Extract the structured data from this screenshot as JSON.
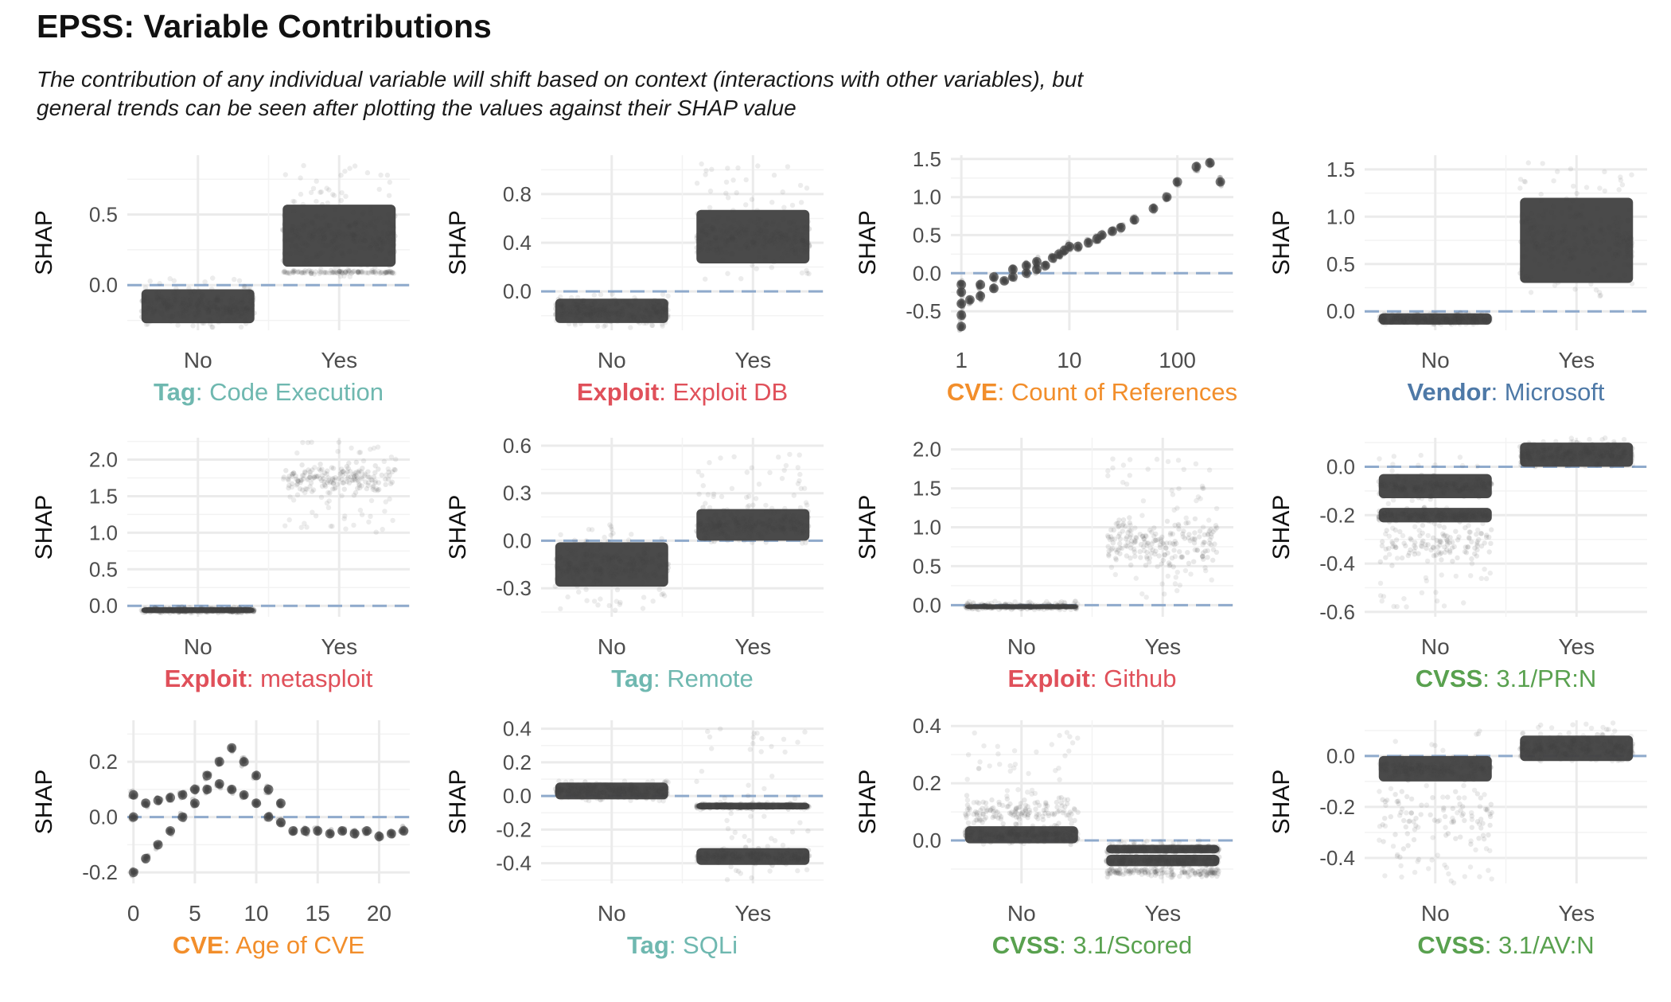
{
  "title": "EPSS: Variable Contributions",
  "subtitle": "The contribution of any individual variable will shift based on context (interactions with other variables), but general trends can be seen after plotting the values against their SHAP value",
  "colors": {
    "Tag": "#6fb8b0",
    "Exploit": "#e0505a",
    "CVE": "#f28e2b",
    "Vendor": "#4e79a7",
    "CVSS": "#59a14f",
    "points": "#444444",
    "zeroline": "#8faacc",
    "grid": "#ebebeb",
    "axis_text": "#4d4d4d"
  },
  "chart_data": [
    {
      "type": "scatter",
      "category": "Tag",
      "variable": "Code Execution",
      "ylabel": "SHAP",
      "xticks": [
        "No",
        "Yes"
      ],
      "yticks": [
        0.0,
        0.5
      ],
      "ytick_labels": [
        "0.0",
        "0.5"
      ],
      "ylim": [
        -0.32,
        0.92
      ],
      "groups": [
        {
          "x": "No",
          "bands": [
            {
              "center": -0.15,
              "half": 0.12,
              "density": 1.0
            }
          ],
          "scatter": {
            "min": -0.3,
            "max": 0.06
          }
        },
        {
          "x": "Yes",
          "bands": [
            {
              "center": 0.35,
              "half": 0.22,
              "density": 1.0
            },
            {
              "center": 0.09,
              "half": 0.015,
              "density": 0.5
            }
          ],
          "scatter": {
            "min": 0.05,
            "max": 0.85
          }
        }
      ]
    },
    {
      "type": "scatter",
      "category": "Exploit",
      "variable": "Exploit DB",
      "ylabel": "SHAP",
      "xticks": [
        "No",
        "Yes"
      ],
      "yticks": [
        0.0,
        0.4,
        0.8
      ],
      "ytick_labels": [
        "0.0",
        "0.4",
        "0.8"
      ],
      "ylim": [
        -0.32,
        1.12
      ],
      "groups": [
        {
          "x": "No",
          "bands": [
            {
              "center": -0.16,
              "half": 0.1,
              "density": 1.0
            }
          ],
          "scatter": {
            "min": -0.3,
            "max": -0.02
          }
        },
        {
          "x": "Yes",
          "bands": [
            {
              "center": 0.45,
              "half": 0.22,
              "density": 1.0
            }
          ],
          "scatter": {
            "min": 0.1,
            "max": 1.05
          }
        }
      ]
    },
    {
      "type": "scatter",
      "category": "CVE",
      "variable": "Count of References",
      "ylabel": "SHAP",
      "xscale": "log",
      "xticks": [
        1,
        10,
        100
      ],
      "xtick_labels": [
        "1",
        "10",
        "100"
      ],
      "xlim": [
        0.8,
        330
      ],
      "yticks": [
        -0.5,
        0.0,
        0.5,
        1.0,
        1.5
      ],
      "ytick_labels": [
        "-0.5",
        "0.0",
        "0.5",
        "1.0",
        "1.5"
      ],
      "ylim": [
        -0.75,
        1.55
      ],
      "points": [
        [
          1,
          -0.7
        ],
        [
          1,
          -0.55
        ],
        [
          1,
          -0.4
        ],
        [
          1,
          -0.25
        ],
        [
          1,
          -0.15
        ],
        [
          1.2,
          -0.35
        ],
        [
          1.5,
          -0.3
        ],
        [
          1.5,
          -0.15
        ],
        [
          2,
          -0.2
        ],
        [
          2,
          -0.05
        ],
        [
          2.5,
          -0.1
        ],
        [
          3,
          -0.05
        ],
        [
          3,
          0.05
        ],
        [
          4,
          0.0
        ],
        [
          4,
          0.1
        ],
        [
          5,
          0.05
        ],
        [
          5,
          0.15
        ],
        [
          6,
          0.1
        ],
        [
          7,
          0.2
        ],
        [
          8,
          0.25
        ],
        [
          9,
          0.3
        ],
        [
          10,
          0.35
        ],
        [
          12,
          0.35
        ],
        [
          15,
          0.4
        ],
        [
          18,
          0.45
        ],
        [
          20,
          0.5
        ],
        [
          25,
          0.55
        ],
        [
          30,
          0.6
        ],
        [
          40,
          0.7
        ],
        [
          60,
          0.85
        ],
        [
          80,
          1.0
        ],
        [
          100,
          1.2
        ],
        [
          150,
          1.4
        ],
        [
          200,
          1.45
        ],
        [
          250,
          1.2
        ]
      ]
    },
    {
      "type": "scatter",
      "category": "Vendor",
      "variable": "Microsoft",
      "ylabel": "SHAP",
      "xticks": [
        "No",
        "Yes"
      ],
      "yticks": [
        0.0,
        0.5,
        1.0,
        1.5
      ],
      "ytick_labels": [
        "0.0",
        "0.5",
        "1.0",
        "1.5"
      ],
      "ylim": [
        -0.2,
        1.65
      ],
      "groups": [
        {
          "x": "No",
          "bands": [
            {
              "center": -0.08,
              "half": 0.06,
              "density": 1.0
            }
          ],
          "scatter": {
            "min": -0.14,
            "max": -0.02
          }
        },
        {
          "x": "Yes",
          "bands": [
            {
              "center": 0.75,
              "half": 0.45,
              "density": 0.9
            }
          ],
          "scatter": {
            "min": 0.15,
            "max": 1.6
          }
        }
      ]
    },
    {
      "type": "scatter",
      "category": "Exploit",
      "variable": "metasploit",
      "ylabel": "SHAP",
      "xticks": [
        "No",
        "Yes"
      ],
      "yticks": [
        0.0,
        0.5,
        1.0,
        1.5,
        2.0
      ],
      "ytick_labels": [
        "0.0",
        "0.5",
        "1.0",
        "1.5",
        "2.0"
      ],
      "ylim": [
        -0.15,
        2.3
      ],
      "groups": [
        {
          "x": "No",
          "bands": [
            {
              "center": -0.06,
              "half": 0.04,
              "density": 1.0
            }
          ],
          "scatter": {
            "min": -0.1,
            "max": -0.02
          }
        },
        {
          "x": "Yes",
          "bands": [
            {
              "center": 1.75,
              "half": 0.25,
              "density": 0.7
            }
          ],
          "scatter": {
            "min": 1.0,
            "max": 2.25
          }
        }
      ]
    },
    {
      "type": "scatter",
      "category": "Tag",
      "variable": "Remote",
      "ylabel": "SHAP",
      "xticks": [
        "No",
        "Yes"
      ],
      "yticks": [
        -0.3,
        0.0,
        0.3,
        0.6
      ],
      "ytick_labels": [
        "-0.3",
        "0.0",
        "0.3",
        "0.6"
      ],
      "ylim": [
        -0.48,
        0.65
      ],
      "groups": [
        {
          "x": "No",
          "bands": [
            {
              "center": -0.15,
              "half": 0.14,
              "density": 1.0
            }
          ],
          "scatter": {
            "min": -0.45,
            "max": 0.12
          }
        },
        {
          "x": "Yes",
          "bands": [
            {
              "center": 0.1,
              "half": 0.1,
              "density": 1.0
            }
          ],
          "scatter": {
            "min": -0.03,
            "max": 0.55
          }
        }
      ]
    },
    {
      "type": "scatter",
      "category": "Exploit",
      "variable": "Github",
      "ylabel": "SHAP",
      "xticks": [
        "No",
        "Yes"
      ],
      "yticks": [
        0.0,
        0.5,
        1.0,
        1.5,
        2.0
      ],
      "ytick_labels": [
        "0.0",
        "0.5",
        "1.0",
        "1.5",
        "2.0"
      ],
      "ylim": [
        -0.15,
        2.15
      ],
      "groups": [
        {
          "x": "No",
          "bands": [
            {
              "center": -0.02,
              "half": 0.03,
              "density": 1.0
            }
          ],
          "scatter": {
            "min": -0.06,
            "max": 0.05
          }
        },
        {
          "x": "Yes",
          "bands": [
            {
              "center": 0.8,
              "half": 0.4,
              "density": 0.8
            }
          ],
          "scatter": {
            "min": 0.1,
            "max": 1.9
          }
        }
      ]
    },
    {
      "type": "scatter",
      "category": "CVSS",
      "variable": "3.1/PR:N",
      "ylabel": "SHAP",
      "xticks": [
        "No",
        "Yes"
      ],
      "yticks": [
        -0.6,
        -0.4,
        -0.2,
        0.0
      ],
      "ytick_labels": [
        "-0.6",
        "-0.4",
        "-0.2",
        "0.0"
      ],
      "ylim": [
        -0.62,
        0.12
      ],
      "groups": [
        {
          "x": "No",
          "bands": [
            {
              "center": -0.08,
              "half": 0.05,
              "density": 1.0
            },
            {
              "center": -0.2,
              "half": 0.03,
              "density": 1.0
            },
            {
              "center": -0.32,
              "half": 0.1,
              "density": 0.5
            }
          ],
          "scatter": {
            "min": -0.58,
            "max": 0.05
          }
        },
        {
          "x": "Yes",
          "bands": [
            {
              "center": 0.05,
              "half": 0.05,
              "density": 1.0
            }
          ],
          "scatter": {
            "min": 0.0,
            "max": 0.12
          }
        }
      ]
    },
    {
      "type": "scatter",
      "category": "CVE",
      "variable": "Age of CVE",
      "ylabel": "SHAP",
      "xticks": [
        0,
        5,
        10,
        15,
        20
      ],
      "xtick_labels": [
        "0",
        "5",
        "10",
        "15",
        "20"
      ],
      "xlim": [
        -0.5,
        22.5
      ],
      "yticks": [
        -0.2,
        0.0,
        0.2
      ],
      "ytick_labels": [
        "-0.2",
        "0.0",
        "0.2"
      ],
      "ylim": [
        -0.24,
        0.35
      ],
      "points": [
        [
          0,
          -0.2
        ],
        [
          0,
          0.0
        ],
        [
          0,
          0.08
        ],
        [
          1,
          -0.15
        ],
        [
          1,
          0.05
        ],
        [
          2,
          -0.1
        ],
        [
          2,
          0.06
        ],
        [
          3,
          -0.05
        ],
        [
          3,
          0.07
        ],
        [
          4,
          0.0
        ],
        [
          4,
          0.08
        ],
        [
          5,
          0.05
        ],
        [
          5,
          0.1
        ],
        [
          6,
          0.1
        ],
        [
          6,
          0.15
        ],
        [
          7,
          0.12
        ],
        [
          7,
          0.2
        ],
        [
          8,
          0.1
        ],
        [
          8,
          0.25
        ],
        [
          9,
          0.08
        ],
        [
          9,
          0.2
        ],
        [
          10,
          0.05
        ],
        [
          10,
          0.15
        ],
        [
          11,
          0.0
        ],
        [
          11,
          0.1
        ],
        [
          12,
          -0.02
        ],
        [
          12,
          0.05
        ],
        [
          13,
          -0.05
        ],
        [
          14,
          -0.05
        ],
        [
          15,
          -0.05
        ],
        [
          16,
          -0.06
        ],
        [
          17,
          -0.05
        ],
        [
          18,
          -0.06
        ],
        [
          19,
          -0.05
        ],
        [
          20,
          -0.07
        ],
        [
          21,
          -0.06
        ],
        [
          22,
          -0.05
        ]
      ]
    },
    {
      "type": "scatter",
      "category": "Tag",
      "variable": "SQLi",
      "ylabel": "SHAP",
      "xticks": [
        "No",
        "Yes"
      ],
      "yticks": [
        -0.4,
        -0.2,
        0.0,
        0.2,
        0.4
      ],
      "ytick_labels": [
        "-0.4",
        "-0.2",
        "0.0",
        "0.2",
        "0.4"
      ],
      "ylim": [
        -0.52,
        0.45
      ],
      "groups": [
        {
          "x": "No",
          "bands": [
            {
              "center": 0.03,
              "half": 0.05,
              "density": 1.0
            }
          ],
          "scatter": {
            "min": -0.03,
            "max": 0.1
          }
        },
        {
          "x": "Yes",
          "bands": [
            {
              "center": -0.06,
              "half": 0.02,
              "density": 1.0
            },
            {
              "center": -0.36,
              "half": 0.05,
              "density": 1.0
            }
          ],
          "scatter": {
            "min": -0.5,
            "max": 0.4
          }
        }
      ]
    },
    {
      "type": "scatter",
      "category": "CVSS",
      "variable": "3.1/Scored",
      "ylabel": "SHAP",
      "xticks": [
        "No",
        "Yes"
      ],
      "yticks": [
        0.0,
        0.2,
        0.4
      ],
      "ytick_labels": [
        "0.0",
        "0.2",
        "0.4"
      ],
      "ylim": [
        -0.15,
        0.42
      ],
      "groups": [
        {
          "x": "No",
          "bands": [
            {
              "center": 0.02,
              "half": 0.03,
              "density": 1.0
            },
            {
              "center": 0.1,
              "half": 0.06,
              "density": 0.6
            }
          ],
          "scatter": {
            "min": -0.02,
            "max": 0.38
          }
        },
        {
          "x": "Yes",
          "bands": [
            {
              "center": -0.03,
              "half": 0.015,
              "density": 1.0
            },
            {
              "center": -0.07,
              "half": 0.02,
              "density": 1.0
            },
            {
              "center": -0.11,
              "half": 0.02,
              "density": 0.6
            }
          ],
          "scatter": {
            "min": -0.13,
            "max": 0.0
          }
        }
      ]
    },
    {
      "type": "scatter",
      "category": "CVSS",
      "variable": "3.1/AV:N",
      "ylabel": "SHAP",
      "xticks": [
        "No",
        "Yes"
      ],
      "yticks": [
        -0.4,
        -0.2,
        0.0
      ],
      "ytick_labels": [
        "-0.4",
        "-0.2",
        "0.0"
      ],
      "ylim": [
        -0.5,
        0.14
      ],
      "groups": [
        {
          "x": "No",
          "bands": [
            {
              "center": -0.05,
              "half": 0.05,
              "density": 1.0
            },
            {
              "center": -0.25,
              "half": 0.15,
              "density": 0.35
            }
          ],
          "scatter": {
            "min": -0.5,
            "max": 0.1
          }
        },
        {
          "x": "Yes",
          "bands": [
            {
              "center": 0.03,
              "half": 0.05,
              "density": 1.0
            }
          ],
          "scatter": {
            "min": -0.02,
            "max": 0.13
          }
        }
      ]
    }
  ]
}
